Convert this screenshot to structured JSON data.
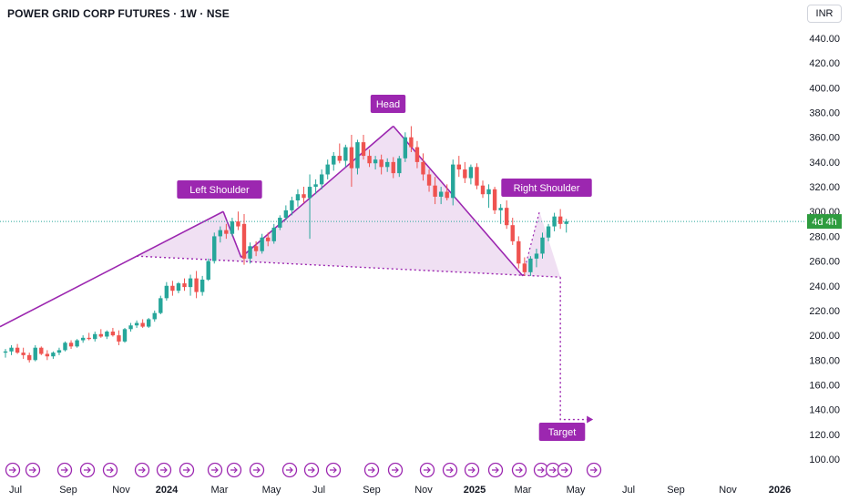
{
  "header": {
    "title": "POWER GRID CORP FUTURES · 1W · NSE",
    "currency": "INR"
  },
  "colors": {
    "up": "#26a69a",
    "down": "#ef5350",
    "pattern": "#9c27b0",
    "pattern_fill": "#e9d3ee",
    "price_line": "#26a69a",
    "price_tag_bg": "#2e9c3f"
  },
  "chart_data": {
    "type": "candlestick",
    "title": "POWER GRID CORP FUTURES · 1W · NSE",
    "ylabel": "",
    "y_ticks": [
      100,
      120,
      140,
      160,
      180,
      200,
      220,
      240,
      260,
      280,
      300,
      320,
      340,
      360,
      380,
      400,
      420,
      440
    ],
    "y_tick_labels": [
      "100.00",
      "120.00",
      "140.00",
      "160.00",
      "180.00",
      "200.00",
      "220.00",
      "240.00",
      "260.00",
      "280.00",
      "300.00",
      "320.00",
      "340.00",
      "360.00",
      "380.00",
      "400.00",
      "420.00",
      "440.00"
    ],
    "x_ticks": [
      "Jul",
      "Sep",
      "Nov",
      "2024",
      "Mar",
      "May",
      "Jul",
      "Sep",
      "Nov",
      "2025",
      "Mar",
      "May",
      "Jul",
      "Sep",
      "Nov",
      "2026"
    ],
    "ylim": [
      95,
      450
    ],
    "grid": false,
    "current_price": 292,
    "countdown_label": "4d 4h",
    "candles": [
      [
        186,
        189,
        182,
        187
      ],
      [
        187,
        192,
        184,
        190
      ],
      [
        190,
        193,
        185,
        186
      ],
      [
        186,
        190,
        181,
        184
      ],
      [
        184,
        186,
        178,
        180
      ],
      [
        180,
        192,
        179,
        190
      ],
      [
        190,
        191,
        184,
        185
      ],
      [
        185,
        188,
        180,
        183
      ],
      [
        183,
        187,
        181,
        186
      ],
      [
        186,
        190,
        184,
        188
      ],
      [
        188,
        195,
        187,
        194
      ],
      [
        194,
        196,
        189,
        191
      ],
      [
        191,
        197,
        190,
        196
      ],
      [
        196,
        200,
        194,
        198
      ],
      [
        198,
        202,
        196,
        197
      ],
      [
        197,
        203,
        195,
        201
      ],
      [
        201,
        205,
        198,
        199
      ],
      [
        199,
        204,
        197,
        203
      ],
      [
        203,
        206,
        199,
        200
      ],
      [
        200,
        204,
        192,
        195
      ],
      [
        195,
        206,
        194,
        205
      ],
      [
        205,
        210,
        203,
        208
      ],
      [
        208,
        212,
        206,
        210
      ],
      [
        210,
        213,
        206,
        207
      ],
      [
        207,
        214,
        206,
        213
      ],
      [
        213,
        220,
        211,
        218
      ],
      [
        218,
        232,
        217,
        230
      ],
      [
        230,
        243,
        228,
        240
      ],
      [
        240,
        244,
        232,
        236
      ],
      [
        236,
        243,
        234,
        242
      ],
      [
        242,
        246,
        236,
        239
      ],
      [
        239,
        249,
        232,
        246
      ],
      [
        246,
        252,
        230,
        235
      ],
      [
        235,
        248,
        232,
        245
      ],
      [
        245,
        262,
        244,
        260
      ],
      [
        260,
        283,
        258,
        280
      ],
      [
        280,
        288,
        275,
        285
      ],
      [
        285,
        290,
        278,
        282
      ],
      [
        282,
        295,
        280,
        292
      ],
      [
        292,
        300,
        285,
        288
      ],
      [
        290,
        298,
        257,
        262
      ],
      [
        262,
        275,
        258,
        272
      ],
      [
        272,
        276,
        264,
        268
      ],
      [
        268,
        282,
        266,
        279
      ],
      [
        279,
        283,
        272,
        276
      ],
      [
        276,
        290,
        274,
        287
      ],
      [
        287,
        297,
        285,
        295
      ],
      [
        295,
        305,
        293,
        301
      ],
      [
        301,
        312,
        297,
        309
      ],
      [
        309,
        318,
        304,
        314
      ],
      [
        314,
        320,
        307,
        311
      ],
      [
        311,
        330,
        278,
        320
      ],
      [
        320,
        326,
        314,
        322
      ],
      [
        322,
        334,
        318,
        330
      ],
      [
        330,
        342,
        326,
        338
      ],
      [
        338,
        348,
        333,
        345
      ],
      [
        345,
        355,
        339,
        341
      ],
      [
        341,
        354,
        336,
        352
      ],
      [
        352,
        362,
        320,
        335
      ],
      [
        335,
        358,
        330,
        356
      ],
      [
        356,
        362,
        342,
        345
      ],
      [
        345,
        350,
        336,
        339
      ],
      [
        339,
        345,
        334,
        342
      ],
      [
        342,
        346,
        330,
        336
      ],
      [
        336,
        343,
        332,
        340
      ],
      [
        340,
        344,
        327,
        331
      ],
      [
        331,
        345,
        328,
        343
      ],
      [
        343,
        364,
        340,
        360
      ],
      [
        360,
        369,
        348,
        352
      ],
      [
        352,
        357,
        335,
        340
      ],
      [
        340,
        347,
        325,
        330
      ],
      [
        330,
        334,
        316,
        321
      ],
      [
        321,
        328,
        306,
        312
      ],
      [
        312,
        320,
        306,
        316
      ],
      [
        316,
        322,
        309,
        311
      ],
      [
        311,
        342,
        305,
        338
      ],
      [
        338,
        345,
        328,
        334
      ],
      [
        334,
        340,
        323,
        327
      ],
      [
        327,
        338,
        322,
        336
      ],
      [
        336,
        339,
        318,
        321
      ],
      [
        321,
        325,
        311,
        314
      ],
      [
        314,
        322,
        303,
        318
      ],
      [
        318,
        320,
        298,
        301
      ],
      [
        301,
        306,
        290,
        303
      ],
      [
        303,
        309,
        286,
        289
      ],
      [
        289,
        295,
        273,
        276
      ],
      [
        276,
        280,
        254,
        258
      ],
      [
        258,
        263,
        248,
        251
      ],
      [
        251,
        264,
        248,
        262
      ],
      [
        262,
        270,
        255,
        266
      ],
      [
        266,
        283,
        262,
        279
      ],
      [
        279,
        290,
        276,
        288
      ],
      [
        288,
        299,
        284,
        296
      ],
      [
        296,
        302,
        286,
        290
      ],
      [
        290,
        294,
        283,
        292
      ]
    ]
  },
  "pattern": {
    "left_shoulder_label": "Left Shoulder",
    "head_label": "Head",
    "right_shoulder_label": "Right Shoulder",
    "target_label": "Target",
    "left_shoulder_price": 300,
    "head_price": 369,
    "right_shoulder_price": 300,
    "neckline_start_price": 263,
    "neckline_end_price": 248,
    "target_price": 132
  }
}
